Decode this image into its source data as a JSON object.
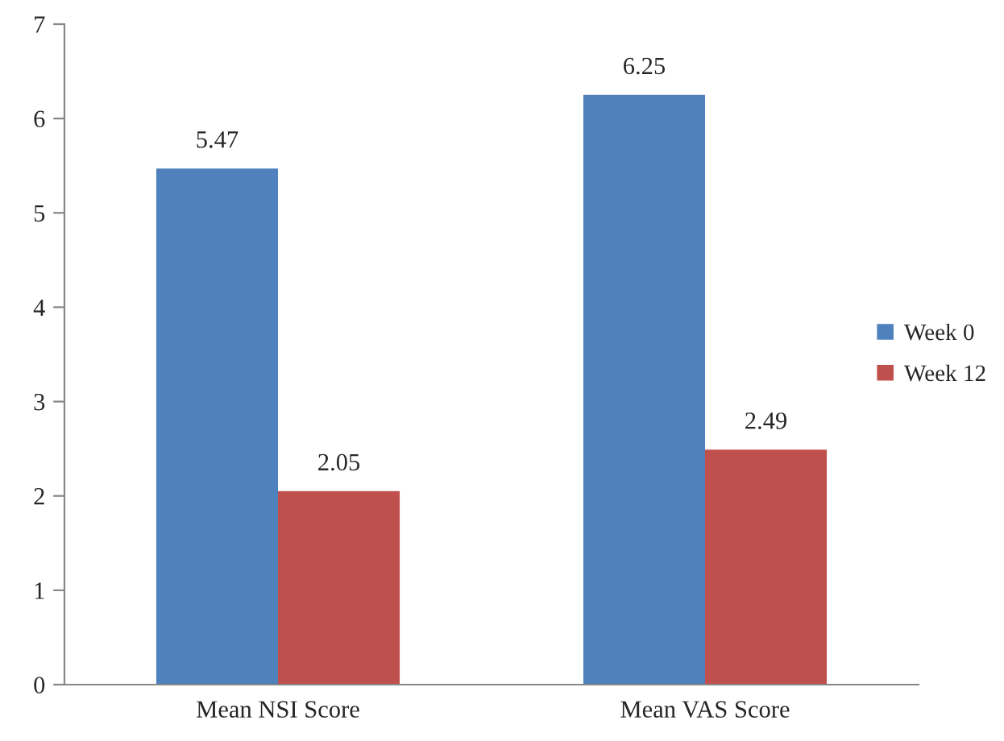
{
  "chart_data": {
    "type": "bar",
    "categories": [
      "Mean NSI Score",
      "Mean VAS Score"
    ],
    "series": [
      {
        "name": "Week 0",
        "color": "#4f81bd",
        "values": [
          5.47,
          6.25
        ]
      },
      {
        "name": "Week 12",
        "color": "#c0504d",
        "values": [
          2.05,
          2.49
        ]
      }
    ],
    "ylim": [
      0,
      7
    ],
    "yticks": [
      0,
      1,
      2,
      3,
      4,
      5,
      6,
      7
    ],
    "data_labels": true,
    "legend": "right",
    "grid": false
  }
}
